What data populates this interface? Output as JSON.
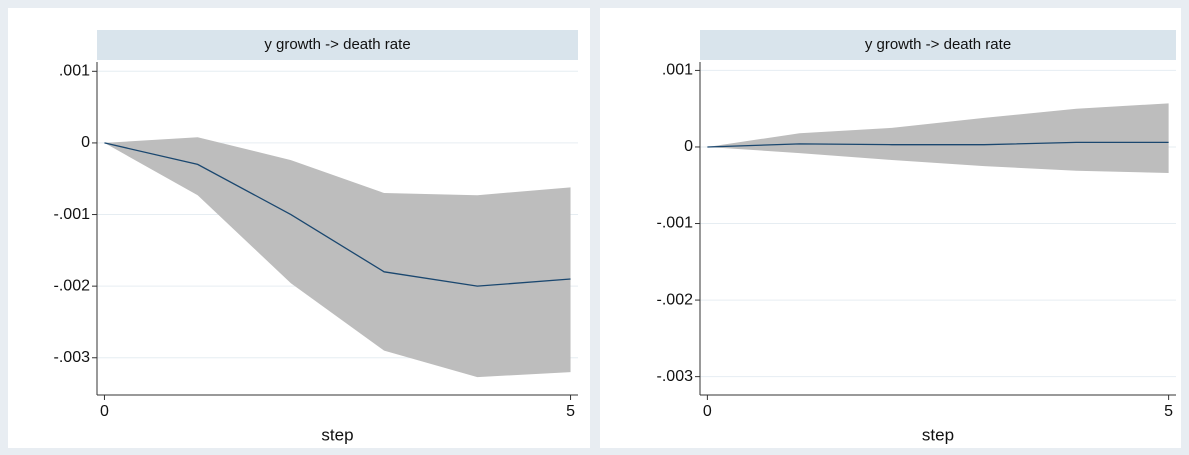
{
  "chart_data": [
    {
      "type": "irf",
      "title": "y growth -> death rate",
      "xlabel": "step",
      "x": [
        0,
        1,
        2,
        3,
        4,
        5
      ],
      "values": [
        0,
        -0.0003,
        -0.001,
        -0.0018,
        -0.002,
        -0.0019
      ],
      "upper": [
        0,
        8e-05,
        -0.00024,
        -0.0007,
        -0.00073,
        -0.00062
      ],
      "lower": [
        0,
        -0.00073,
        -0.00196,
        -0.0029,
        -0.00327,
        -0.0032
      ],
      "line_color": "#1a476f",
      "band_color": "#bdbdbd",
      "xlim": [
        -0.08,
        5.08
      ],
      "xticks": [
        0,
        5
      ],
      "ylim": [
        -0.00352,
        0.00113
      ],
      "yticks": [
        {
          "value": 0.001,
          "label": ".001"
        },
        0,
        {
          "value": -0.001,
          "label": "-.001"
        },
        {
          "value": -0.002,
          "label": "-.002"
        },
        {
          "value": -0.003,
          "label": "-.003"
        }
      ],
      "grid": true
    },
    {
      "type": "irf",
      "title": "y growth -> death rate",
      "xlabel": "step",
      "x": [
        0,
        1,
        2,
        3,
        4,
        5
      ],
      "values": [
        0,
        4e-05,
        3e-05,
        3e-05,
        6e-05,
        6e-05
      ],
      "upper": [
        0,
        0.00018,
        0.00025,
        0.00038,
        0.0005,
        0.00057
      ],
      "lower": [
        0,
        -8e-05,
        -0.00017,
        -0.00025,
        -0.00031,
        -0.00034
      ],
      "line_color": "#1a476f",
      "band_color": "#bdbdbd",
      "xlim": [
        -0.08,
        5.08
      ],
      "xticks": [
        0,
        5
      ],
      "ylim": [
        -0.00324,
        0.00111
      ],
      "yticks": [
        {
          "value": 0.001,
          "label": ".001"
        },
        0,
        {
          "value": -0.001,
          "label": "-.001"
        },
        {
          "value": -0.002,
          "label": "-.002"
        },
        {
          "value": -0.003,
          "label": "-.003"
        }
      ],
      "grid": true
    }
  ]
}
